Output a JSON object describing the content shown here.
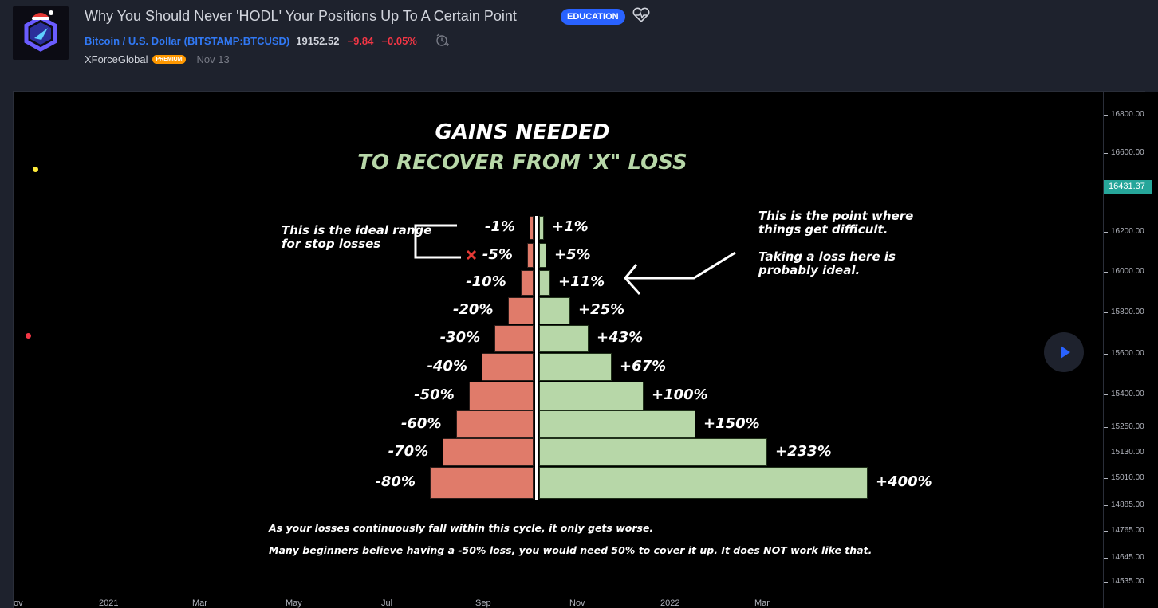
{
  "header": {
    "title": "Why You Should Never 'HODL' Your Positions Up To A Certain Point",
    "badge": "EDUCATION",
    "symbol_name": "Bitcoin / U.S. Dollar",
    "symbol_exchange": "(BITSTAMP:BTCUSD)",
    "price": "19152.52",
    "change": "−9.84",
    "change_pct": "−0.05%",
    "author": "XForceGlobal",
    "author_badge": "PREMIUM",
    "date": "Nov 13",
    "icons": [
      "avatar-logo",
      "heart-pulse-icon",
      "alarm-clock-icon"
    ]
  },
  "price_axis": {
    "ticks": [
      "16800.00",
      "16600.00",
      "16200.00",
      "16000.00",
      "15800.00",
      "15600.00",
      "15400.00",
      "15250.00",
      "15130.00",
      "15010.00",
      "14885.00",
      "14765.00",
      "14645.00",
      "14535.00"
    ],
    "current_price": "16431.37"
  },
  "time_axis": {
    "labels": [
      "ov",
      "2021",
      "Mar",
      "May",
      "Jul",
      "Sep",
      "Nov",
      "2022",
      "Mar"
    ]
  },
  "infographic": {
    "title": "GAINS NEEDED",
    "subtitle": "TO RECOVER FROM 'X\" LOSS",
    "losses": [
      "-1%",
      "-5%",
      "-10%",
      "-20%",
      "-30%",
      "-40%",
      "-50%",
      "-60%",
      "-70%",
      "-80%"
    ],
    "gains": [
      "+1%",
      "+5%",
      "+11%",
      "+25%",
      "+43%",
      "+67%",
      "+100%",
      "+150%",
      "+233%",
      "+400%"
    ],
    "loss_values": [
      1,
      5,
      10,
      20,
      30,
      40,
      50,
      60,
      70,
      80
    ],
    "gain_values": [
      1,
      5,
      11,
      25,
      43,
      67,
      100,
      150,
      233,
      400
    ],
    "left_note_1": "This is the ideal range",
    "left_note_2": "for stop losses",
    "right_note_1": "This is the point where",
    "right_note_2": "things get difficult.",
    "right_note_3": "Taking a loss here is",
    "right_note_4": "probably ideal.",
    "footer_1": "As your losses continuously fall within this cycle, it only gets worse.",
    "footer_2": "Many beginners believe having a -50% loss, you would need 50% to cover it up. It does NOT work like that.",
    "colors": {
      "loss": "#e07b6a",
      "gain": "#b7d7a8",
      "accent": "#2962ff"
    }
  }
}
